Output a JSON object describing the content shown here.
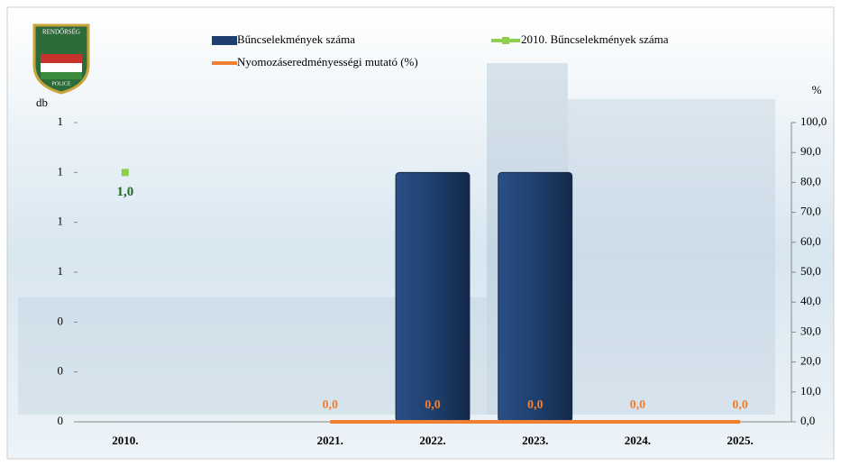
{
  "logo": {
    "top": "RENDŐRSÉG",
    "bottom": "POLICE"
  },
  "chart_data": {
    "type": "bar",
    "y_label": "db",
    "y2_label": "%",
    "categories": [
      "2010.",
      null,
      "2021.",
      "2022.",
      "2023.",
      "2024.",
      "2025."
    ],
    "ylim": [
      0,
      1.2
    ],
    "yticks": [
      {
        "value": 0,
        "label": "0"
      },
      {
        "value": 0.2,
        "label": "0"
      },
      {
        "value": 0.4,
        "label": "0"
      },
      {
        "value": 0.6,
        "label": "1"
      },
      {
        "value": 0.8,
        "label": "1"
      },
      {
        "value": 1.0,
        "label": "1"
      },
      {
        "value": 1.2,
        "label": "1"
      }
    ],
    "y2lim": [
      0,
      100
    ],
    "y2ticks": [
      {
        "value": 0,
        "label": "0,0"
      },
      {
        "value": 10,
        "label": "10,0"
      },
      {
        "value": 20,
        "label": "20,0"
      },
      {
        "value": 30,
        "label": "30,0"
      },
      {
        "value": 40,
        "label": "40,0"
      },
      {
        "value": 50,
        "label": "50,0"
      },
      {
        "value": 60,
        "label": "60,0"
      },
      {
        "value": 70,
        "label": "70,0"
      },
      {
        "value": 80,
        "label": "80,0"
      },
      {
        "value": 90,
        "label": "90,0"
      },
      {
        "value": 100,
        "label": "100,0"
      }
    ],
    "series": [
      {
        "name": "Bűncselekmények száma",
        "type": "bar",
        "color": "#1f3f6e",
        "values": [
          null,
          null,
          null,
          1,
          1,
          null,
          null
        ]
      },
      {
        "name": "2010. Bűncselekmények száma",
        "type": "point",
        "color": "#8fcf4f",
        "values": [
          1,
          null,
          null,
          null,
          null,
          null,
          null
        ],
        "value_labels": [
          "1,0",
          null,
          null,
          null,
          null,
          null,
          null
        ],
        "label_color": "#1e6b1e"
      },
      {
        "name": "Nyomozáseredményességi mutató (%)",
        "type": "line",
        "axis": "y2",
        "color": "#f07f32",
        "values": [
          null,
          null,
          0,
          0,
          0,
          0,
          0
        ],
        "value_labels": [
          null,
          null,
          "0,0",
          "0,0",
          "0,0",
          "0,0",
          "0,0"
        ]
      }
    ]
  }
}
